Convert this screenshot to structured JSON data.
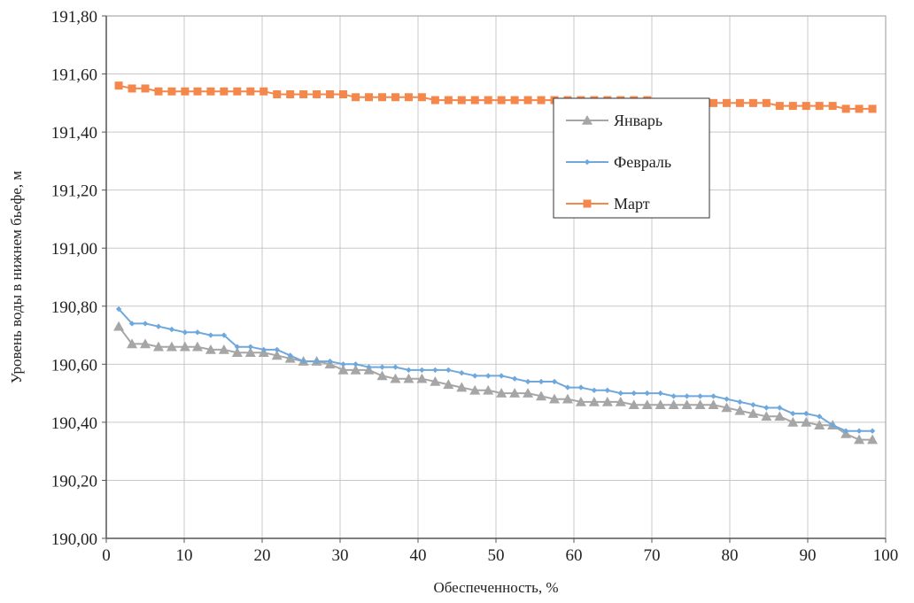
{
  "chart_data": {
    "type": "line",
    "title": "",
    "xlabel": "Обеспеченность, %",
    "ylabel": "Уровень воды в нижнем бьефе, м",
    "xlim": [
      0,
      100
    ],
    "ylim": [
      190.0,
      191.8
    ],
    "x_ticks": [
      0,
      10,
      20,
      30,
      40,
      50,
      60,
      70,
      80,
      90,
      100
    ],
    "x_tick_labels": [
      "0",
      "10",
      "20",
      "30",
      "40",
      "50",
      "60",
      "70",
      "80",
      "90",
      "100"
    ],
    "y_ticks": [
      190.0,
      190.2,
      190.4,
      190.6,
      190.8,
      191.0,
      191.2,
      191.4,
      191.6,
      191.8
    ],
    "y_tick_labels": [
      "190,00",
      "190,20",
      "190,40",
      "190,60",
      "190,80",
      "191,00",
      "191,20",
      "191,40",
      "191,60",
      "191,80"
    ],
    "grid": true,
    "legend_position": "top-right",
    "colors": {
      "jan": "#a6a6a6",
      "feb": "#6fa8dc",
      "mar": "#f4874b",
      "grid": "#c8c8c8",
      "axis": "#555555"
    },
    "series": [
      {
        "name": "Январь",
        "marker": "triangle",
        "x": [
          1.6,
          3.3,
          5.0,
          6.7,
          8.4,
          10.1,
          11.7,
          13.4,
          15.1,
          16.8,
          18.5,
          20.2,
          21.9,
          23.6,
          25.3,
          27.0,
          28.7,
          30.4,
          32.0,
          33.7,
          35.4,
          37.1,
          38.8,
          40.5,
          42.2,
          43.9,
          45.6,
          47.3,
          49.0,
          50.7,
          52.4,
          54.1,
          55.8,
          57.5,
          59.2,
          60.9,
          62.6,
          64.3,
          66.0,
          67.7,
          69.4,
          71.1,
          72.8,
          74.5,
          76.2,
          77.9,
          79.6,
          81.3,
          83.0,
          84.7,
          86.4,
          88.1,
          89.8,
          91.5,
          93.2,
          94.9,
          96.6,
          98.3
        ],
        "values": [
          190.73,
          190.67,
          190.67,
          190.66,
          190.66,
          190.66,
          190.66,
          190.65,
          190.65,
          190.64,
          190.64,
          190.64,
          190.63,
          190.62,
          190.61,
          190.61,
          190.6,
          190.58,
          190.58,
          190.58,
          190.56,
          190.55,
          190.55,
          190.55,
          190.54,
          190.53,
          190.52,
          190.51,
          190.51,
          190.5,
          190.5,
          190.5,
          190.49,
          190.48,
          190.48,
          190.47,
          190.47,
          190.47,
          190.47,
          190.46,
          190.46,
          190.46,
          190.46,
          190.46,
          190.46,
          190.46,
          190.45,
          190.44,
          190.43,
          190.42,
          190.42,
          190.4,
          190.4,
          190.39,
          190.39,
          190.36,
          190.34,
          190.34
        ]
      },
      {
        "name": "Февраль",
        "marker": "diamond",
        "x": [
          1.6,
          3.3,
          5.0,
          6.7,
          8.4,
          10.1,
          11.7,
          13.4,
          15.1,
          16.8,
          18.5,
          20.2,
          21.9,
          23.6,
          25.3,
          27.0,
          28.7,
          30.4,
          32.0,
          33.7,
          35.4,
          37.1,
          38.8,
          40.5,
          42.2,
          43.9,
          45.6,
          47.3,
          49.0,
          50.7,
          52.4,
          54.1,
          55.8,
          57.5,
          59.2,
          60.9,
          62.6,
          64.3,
          66.0,
          67.7,
          69.4,
          71.1,
          72.8,
          74.5,
          76.2,
          77.9,
          79.6,
          81.3,
          83.0,
          84.7,
          86.4,
          88.1,
          89.8,
          91.5,
          93.2,
          94.9,
          96.6,
          98.3
        ],
        "values": [
          190.79,
          190.74,
          190.74,
          190.73,
          190.72,
          190.71,
          190.71,
          190.7,
          190.7,
          190.66,
          190.66,
          190.65,
          190.65,
          190.63,
          190.61,
          190.61,
          190.61,
          190.6,
          190.6,
          190.59,
          190.59,
          190.59,
          190.58,
          190.58,
          190.58,
          190.58,
          190.57,
          190.56,
          190.56,
          190.56,
          190.55,
          190.54,
          190.54,
          190.54,
          190.52,
          190.52,
          190.51,
          190.51,
          190.5,
          190.5,
          190.5,
          190.5,
          190.49,
          190.49,
          190.49,
          190.49,
          190.48,
          190.47,
          190.46,
          190.45,
          190.45,
          190.43,
          190.43,
          190.42,
          190.39,
          190.37,
          190.37,
          190.37
        ]
      },
      {
        "name": "Март",
        "marker": "square",
        "x": [
          1.6,
          3.3,
          5.0,
          6.7,
          8.4,
          10.1,
          11.7,
          13.4,
          15.1,
          16.8,
          18.5,
          20.2,
          21.9,
          23.6,
          25.3,
          27.0,
          28.7,
          30.4,
          32.0,
          33.7,
          35.4,
          37.1,
          38.8,
          40.5,
          42.2,
          43.9,
          45.6,
          47.3,
          49.0,
          50.7,
          52.4,
          54.1,
          55.8,
          57.5,
          59.2,
          60.9,
          62.6,
          64.3,
          66.0,
          67.7,
          69.4,
          71.1,
          72.8,
          74.5,
          76.2,
          77.9,
          79.6,
          81.3,
          83.0,
          84.7,
          86.4,
          88.1,
          89.8,
          91.5,
          93.2,
          94.9,
          96.6,
          98.3
        ],
        "values": [
          191.56,
          191.55,
          191.55,
          191.54,
          191.54,
          191.54,
          191.54,
          191.54,
          191.54,
          191.54,
          191.54,
          191.54,
          191.53,
          191.53,
          191.53,
          191.53,
          191.53,
          191.53,
          191.52,
          191.52,
          191.52,
          191.52,
          191.52,
          191.52,
          191.51,
          191.51,
          191.51,
          191.51,
          191.51,
          191.51,
          191.51,
          191.51,
          191.51,
          191.51,
          191.51,
          191.51,
          191.51,
          191.51,
          191.51,
          191.51,
          191.51,
          191.5,
          191.5,
          191.5,
          191.5,
          191.5,
          191.5,
          191.5,
          191.5,
          191.5,
          191.49,
          191.49,
          191.49,
          191.49,
          191.49,
          191.48,
          191.48,
          191.48
        ]
      }
    ]
  }
}
